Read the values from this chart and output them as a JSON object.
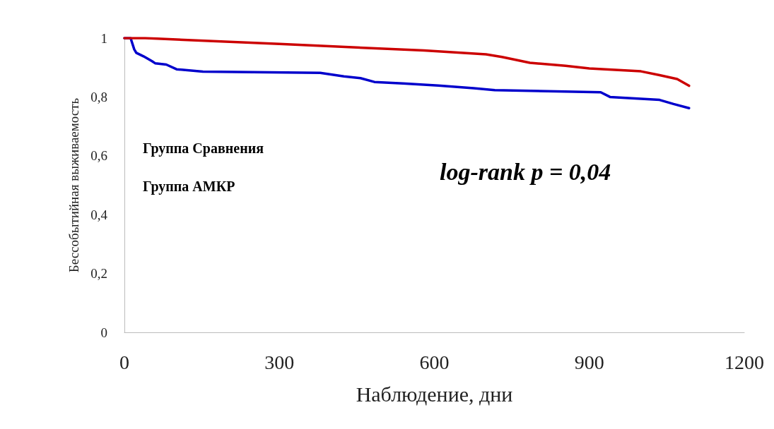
{
  "chart_data": {
    "type": "line",
    "xlabel": "Наблюдение, дни",
    "ylabel": "Бессобытийная выживаемость",
    "annotations": [
      "Группа Сравнения",
      "Группа АМКР",
      "log-rank p = 0,04"
    ],
    "xlim": [
      0,
      1200
    ],
    "xticks": [
      0,
      300,
      600,
      900,
      1200
    ],
    "ylim": [
      0,
      1
    ],
    "yticks": [
      0,
      {
        "value": 0.2,
        "label": "0,2"
      },
      {
        "value": 0.4,
        "label": "0,4"
      },
      {
        "value": 0.6,
        "label": "0,6"
      },
      {
        "value": 0.8,
        "label": "0,8"
      },
      1
    ],
    "grid": false,
    "marker": "none",
    "line_style": "solid",
    "series": [
      {
        "color": "#cc0000",
        "x": [
          0,
          40,
          300,
          580,
          700,
          731,
          785,
          854,
          900,
          1000,
          1036,
          1070,
          1093
        ],
        "values": [
          1,
          1,
          0.98,
          0.958,
          0.945,
          0.936,
          0.916,
          0.906,
          0.897,
          0.887,
          0.874,
          0.861,
          0.838
        ]
      },
      {
        "color": "#0000cc",
        "x": [
          0,
          12,
          19,
          23,
          37,
          53,
          60,
          81,
          101,
          152,
          379,
          425,
          457,
          484,
          539,
          608,
          676,
          717,
          922,
          940,
          1036,
          1063,
          1093
        ],
        "values": [
          1,
          1,
          0.962,
          0.95,
          0.938,
          0.922,
          0.914,
          0.91,
          0.894,
          0.886,
          0.882,
          0.87,
          0.864,
          0.851,
          0.846,
          0.839,
          0.83,
          0.823,
          0.816,
          0.8,
          0.79,
          0.776,
          0.762
        ]
      }
    ]
  }
}
